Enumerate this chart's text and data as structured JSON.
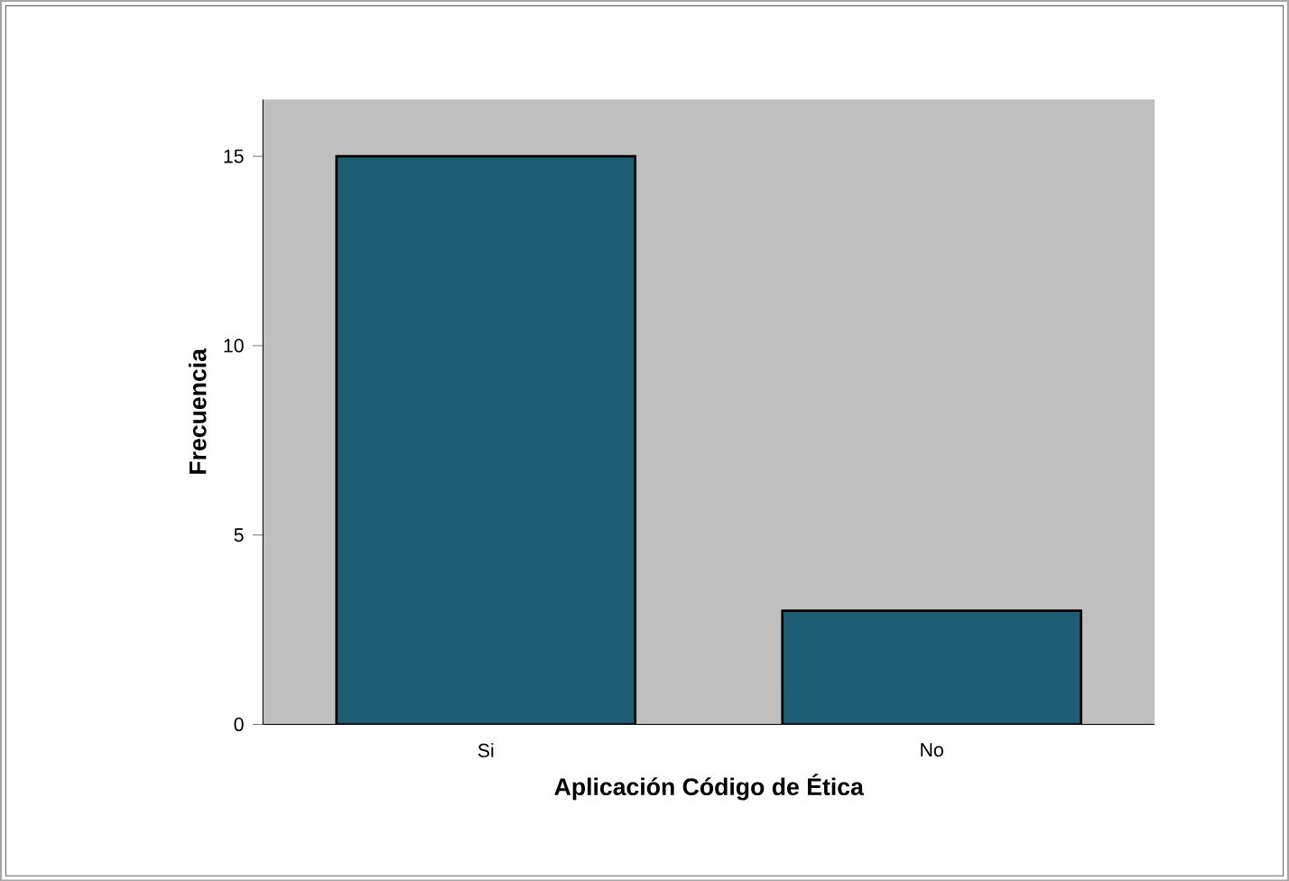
{
  "chart_data": {
    "type": "bar",
    "xlabel": "Aplicación Código de Ética",
    "ylabel": "Frecuencia",
    "categories": [
      "Si",
      "No"
    ],
    "values": [
      15,
      3
    ],
    "color": "#1d5e75",
    "ylim": [
      0,
      16.5
    ],
    "yticks": [
      0,
      5,
      10,
      15
    ],
    "grid": false
  }
}
